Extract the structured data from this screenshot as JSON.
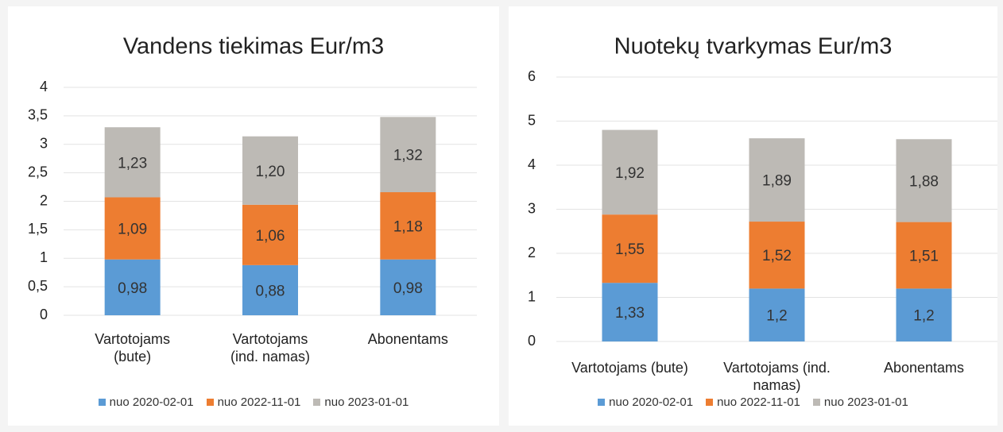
{
  "chart_data": [
    {
      "type": "stacked_bar",
      "title": "Vandens tiekimas Eur/m3",
      "categories": [
        "Vartotojams (bute)",
        "Vartotojams (ind. namas)",
        "Abonentams"
      ],
      "series": [
        {
          "name": "nuo 2020-02-01",
          "color": "#5b9bd5",
          "values": [
            0.98,
            0.88,
            0.98
          ],
          "value_labels": [
            "0,98",
            "0,88",
            "0,98"
          ]
        },
        {
          "name": "nuo 2022-11-01",
          "color": "#ed7d31",
          "values": [
            1.09,
            1.06,
            1.18
          ],
          "value_labels": [
            "1,09",
            "1,06",
            "1,18"
          ]
        },
        {
          "name": "nuo 2023-01-01",
          "color": "#bdbab5",
          "values": [
            1.23,
            1.2,
            1.32
          ],
          "value_labels": [
            "1,23",
            "1,20",
            "1,32"
          ]
        }
      ],
      "ylim": [
        0,
        4
      ],
      "yticks": [
        0,
        {
          "value": 0.5,
          "label": "0,5"
        },
        1,
        {
          "value": 1.5,
          "label": "1,5"
        },
        2,
        {
          "value": 2.5,
          "label": "2,5"
        },
        3,
        {
          "value": 3.5,
          "label": "3,5"
        },
        4
      ],
      "grid": true,
      "legend": "bottom"
    },
    {
      "type": "stacked_bar",
      "title": "Nuotekų tvarkymas Eur/m3",
      "categories": [
        "Vartotojams (bute)",
        "Vartotojams (ind. namas)",
        "Abonentams"
      ],
      "series": [
        {
          "name": "nuo 2020-02-01",
          "color": "#5b9bd5",
          "values": [
            1.33,
            1.2,
            1.2
          ],
          "value_labels": [
            "1,33",
            "1,2",
            "1,2"
          ]
        },
        {
          "name": "nuo 2022-11-01",
          "color": "#ed7d31",
          "values": [
            1.55,
            1.52,
            1.51
          ],
          "value_labels": [
            "1,55",
            "1,52",
            "1,51"
          ]
        },
        {
          "name": "nuo 2023-01-01",
          "color": "#bdbab5",
          "values": [
            1.92,
            1.89,
            1.88
          ],
          "value_labels": [
            "1,92",
            "1,89",
            "1,88"
          ]
        }
      ],
      "ylim": [
        0,
        6
      ],
      "yticks": [
        0,
        1,
        2,
        3,
        4,
        5,
        6
      ],
      "grid": true,
      "legend": "bottom"
    }
  ]
}
